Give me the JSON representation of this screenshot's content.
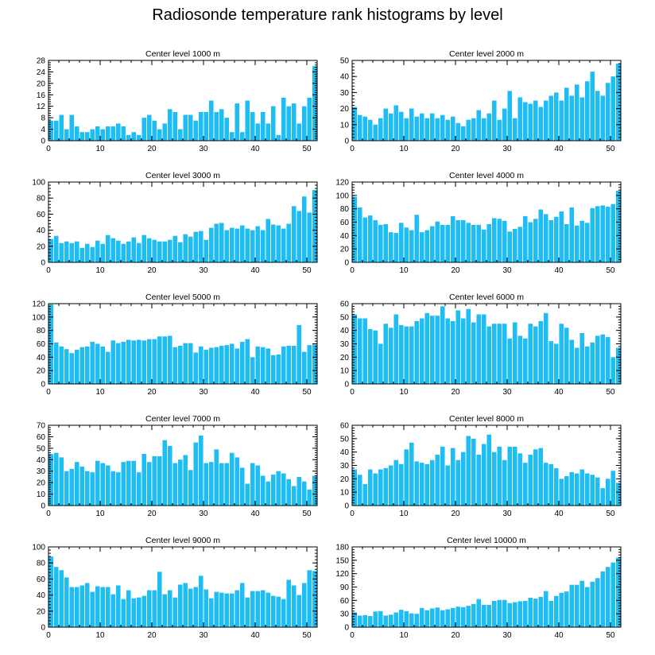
{
  "title": "Radiosonde temperature rank histograms by level",
  "colors": {
    "bar": "#1EBEF5",
    "axis": "#000000"
  },
  "chart_data": [
    {
      "type": "bar",
      "title": "Center level 1000 m",
      "xlim": [
        0,
        52
      ],
      "ylim": [
        0,
        28
      ],
      "xticks": [
        0,
        10,
        20,
        30,
        40,
        50
      ],
      "yticks": [
        0,
        4,
        8,
        12,
        16,
        20,
        24,
        28
      ],
      "values": [
        7,
        7,
        9,
        4,
        9,
        5,
        3,
        3,
        4,
        5,
        4,
        5,
        5,
        6,
        5,
        2,
        3,
        2,
        8,
        9,
        7,
        4,
        6,
        11,
        10,
        4,
        9,
        9,
        7,
        10,
        10,
        14,
        10,
        11,
        8,
        3,
        13,
        3,
        14,
        10,
        6,
        10,
        6,
        12,
        2,
        15,
        12,
        13,
        6,
        12,
        15,
        26
      ]
    },
    {
      "type": "bar",
      "title": "Center level 2000 m",
      "xlim": [
        0,
        52
      ],
      "ylim": [
        0,
        50
      ],
      "xticks": [
        0,
        10,
        20,
        30,
        40,
        50
      ],
      "yticks": [
        0,
        10,
        20,
        30,
        40,
        50
      ],
      "values": [
        21,
        16,
        15,
        13,
        10,
        14,
        20,
        17,
        22,
        18,
        14,
        20,
        15,
        17,
        14,
        17,
        14,
        16,
        13,
        15,
        11,
        9,
        13,
        14,
        19,
        14,
        17,
        25,
        13,
        20,
        31,
        14,
        27,
        24,
        23,
        25,
        21,
        25,
        28,
        30,
        25,
        33,
        28,
        35,
        27,
        37,
        43,
        31,
        28,
        36,
        40,
        48
      ]
    },
    {
      "type": "bar",
      "title": "Center level 3000 m",
      "xlim": [
        0,
        52
      ],
      "ylim": [
        0,
        100
      ],
      "xticks": [
        0,
        10,
        20,
        30,
        40,
        50
      ],
      "yticks": [
        0,
        20,
        40,
        60,
        80,
        100
      ],
      "values": [
        29,
        33,
        24,
        26,
        24,
        26,
        18,
        23,
        19,
        27,
        23,
        34,
        30,
        27,
        23,
        26,
        31,
        24,
        34,
        30,
        28,
        26,
        26,
        28,
        33,
        25,
        35,
        32,
        38,
        39,
        28,
        43,
        48,
        49,
        40,
        43,
        42,
        46,
        42,
        40,
        45,
        40,
        54,
        47,
        46,
        42,
        48,
        70,
        64,
        82,
        62,
        90
      ]
    },
    {
      "type": "bar",
      "title": "Center level 4000 m",
      "xlim": [
        0,
        52
      ],
      "ylim": [
        0,
        120
      ],
      "xticks": [
        0,
        10,
        20,
        30,
        40,
        50
      ],
      "yticks": [
        0,
        20,
        40,
        60,
        80,
        100,
        120
      ],
      "values": [
        98,
        82,
        67,
        70,
        63,
        56,
        57,
        45,
        44,
        59,
        52,
        48,
        71,
        45,
        48,
        54,
        61,
        56,
        56,
        69,
        63,
        63,
        59,
        56,
        56,
        49,
        57,
        66,
        65,
        62,
        46,
        50,
        53,
        69,
        60,
        65,
        79,
        72,
        63,
        68,
        76,
        57,
        82,
        55,
        62,
        59,
        81,
        84,
        85,
        83,
        87,
        107
      ]
    },
    {
      "type": "bar",
      "title": "Center level 5000 m",
      "xlim": [
        0,
        52
      ],
      "ylim": [
        0,
        120
      ],
      "xticks": [
        0,
        10,
        20,
        30,
        40,
        50
      ],
      "yticks": [
        0,
        20,
        40,
        60,
        80,
        100,
        120
      ],
      "values": [
        119,
        62,
        56,
        52,
        46,
        51,
        55,
        56,
        63,
        60,
        56,
        48,
        65,
        61,
        63,
        66,
        65,
        66,
        65,
        67,
        67,
        71,
        71,
        72,
        55,
        57,
        61,
        61,
        47,
        56,
        51,
        54,
        55,
        57,
        58,
        60,
        53,
        63,
        67,
        40,
        56,
        55,
        53,
        43,
        44,
        56,
        57,
        57,
        88,
        48,
        58,
        59
      ]
    },
    {
      "type": "bar",
      "title": "Center level 6000 m",
      "xlim": [
        0,
        52
      ],
      "ylim": [
        0,
        60
      ],
      "xticks": [
        0,
        10,
        20,
        30,
        40,
        50
      ],
      "yticks": [
        0,
        10,
        20,
        30,
        40,
        50,
        60
      ],
      "values": [
        52,
        49,
        49,
        41,
        40,
        30,
        45,
        42,
        52,
        44,
        43,
        43,
        47,
        49,
        53,
        51,
        51,
        58,
        49,
        47,
        55,
        49,
        56,
        46,
        52,
        52,
        43,
        45,
        45,
        45,
        34,
        46,
        36,
        34,
        45,
        43,
        47,
        53,
        32,
        30,
        45,
        42,
        33,
        27,
        38,
        28,
        31,
        36,
        37,
        35,
        20,
        27
      ]
    },
    {
      "type": "bar",
      "title": "Center level 7000 m",
      "xlim": [
        0,
        52
      ],
      "ylim": [
        0,
        70
      ],
      "xticks": [
        0,
        10,
        20,
        30,
        40,
        50
      ],
      "yticks": [
        0,
        10,
        20,
        30,
        40,
        50,
        60,
        70
      ],
      "values": [
        45,
        46,
        42,
        30,
        32,
        38,
        34,
        30,
        29,
        39,
        37,
        35,
        30,
        29,
        38,
        39,
        39,
        29,
        45,
        38,
        43,
        43,
        57,
        52,
        37,
        40,
        44,
        31,
        55,
        61,
        37,
        38,
        49,
        37,
        37,
        46,
        42,
        33,
        19,
        37,
        35,
        26,
        21,
        27,
        30,
        28,
        23,
        17,
        25,
        21,
        14,
        26
      ]
    },
    {
      "type": "bar",
      "title": "Center level 8000 m",
      "xlim": [
        0,
        52
      ],
      "ylim": [
        0,
        60
      ],
      "xticks": [
        0,
        10,
        20,
        30,
        40,
        50
      ],
      "yticks": [
        0,
        10,
        20,
        30,
        40,
        50,
        60
      ],
      "values": [
        27,
        23,
        16,
        27,
        24,
        27,
        28,
        30,
        34,
        31,
        42,
        47,
        33,
        32,
        31,
        34,
        38,
        44,
        30,
        43,
        34,
        40,
        52,
        50,
        38,
        46,
        53,
        40,
        44,
        34,
        44,
        44,
        39,
        32,
        38,
        42,
        43,
        32,
        31,
        28,
        20,
        22,
        25,
        24,
        27,
        24,
        23,
        21,
        13,
        20,
        26,
        17
      ]
    },
    {
      "type": "bar",
      "title": "Center level 9000 m",
      "xlim": [
        0,
        52
      ],
      "ylim": [
        0,
        100
      ],
      "xticks": [
        0,
        10,
        20,
        30,
        40,
        50
      ],
      "yticks": [
        0,
        20,
        40,
        60,
        80,
        100
      ],
      "values": [
        88,
        75,
        71,
        62,
        50,
        50,
        52,
        55,
        44,
        51,
        50,
        50,
        41,
        52,
        35,
        46,
        36,
        37,
        39,
        46,
        46,
        69,
        41,
        46,
        37,
        53,
        55,
        48,
        50,
        64,
        47,
        36,
        44,
        43,
        42,
        42,
        46,
        55,
        37,
        45,
        45,
        46,
        43,
        39,
        38,
        35,
        59,
        52,
        40,
        55,
        71,
        70
      ]
    },
    {
      "type": "bar",
      "title": "Center level 10000 m",
      "xlim": [
        0,
        52
      ],
      "ylim": [
        0,
        180
      ],
      "xticks": [
        0,
        10,
        20,
        30,
        40,
        50
      ],
      "yticks": [
        0,
        30,
        60,
        90,
        120,
        150,
        180
      ],
      "values": [
        33,
        26,
        27,
        25,
        35,
        36,
        26,
        28,
        33,
        39,
        36,
        31,
        30,
        43,
        38,
        42,
        44,
        38,
        40,
        43,
        46,
        45,
        48,
        52,
        63,
        50,
        50,
        59,
        61,
        61,
        54,
        56,
        58,
        59,
        66,
        64,
        68,
        81,
        59,
        70,
        77,
        80,
        95,
        95,
        104,
        90,
        102,
        110,
        125,
        135,
        145,
        156
      ]
    }
  ]
}
